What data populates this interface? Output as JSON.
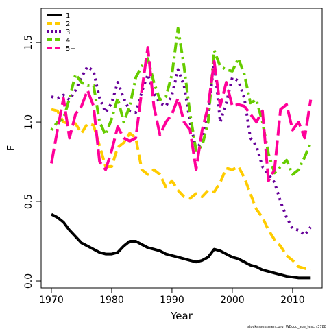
{
  "chart_data": {
    "type": "line",
    "xlabel": "Year",
    "ylabel": "F",
    "credit": "stockassessment.org, WBcod_age_test, r3788",
    "x": [
      1970,
      1971,
      1972,
      1973,
      1974,
      1975,
      1976,
      1977,
      1978,
      1979,
      1980,
      1981,
      1982,
      1983,
      1984,
      1985,
      1986,
      1987,
      1988,
      1989,
      1990,
      1991,
      1992,
      1993,
      1994,
      1995,
      1996,
      1997,
      1998,
      1999,
      2000,
      2001,
      2002,
      2003,
      2004,
      2005,
      2006,
      2007,
      2008,
      2009,
      2010,
      2011,
      2012,
      2013
    ],
    "xlim": [
      1968.3,
      2014.9
    ],
    "xticks": [
      1970,
      1980,
      1990,
      2000,
      2010
    ],
    "ylim": [
      -0.043,
      1.716
    ],
    "yticks": [
      {
        "value": 0,
        "label": "0.0"
      },
      0.5,
      {
        "value": 1,
        "label": "1.0"
      },
      1.5
    ],
    "legend": "top-left",
    "series": [
      {
        "name": "1",
        "color": "#000000",
        "dash": "solid",
        "values": [
          0.42,
          0.4,
          0.37,
          0.32,
          0.28,
          0.24,
          0.22,
          0.2,
          0.18,
          0.17,
          0.17,
          0.18,
          0.22,
          0.25,
          0.25,
          0.23,
          0.21,
          0.2,
          0.19,
          0.17,
          0.16,
          0.15,
          0.14,
          0.13,
          0.12,
          0.13,
          0.15,
          0.2,
          0.19,
          0.17,
          0.15,
          0.14,
          0.12,
          0.1,
          0.09,
          0.07,
          0.06,
          0.05,
          0.04,
          0.03,
          0.025,
          0.02,
          0.02,
          0.02
        ]
      },
      {
        "name": "2",
        "color": "#ffcc00",
        "dash": "dashed",
        "values": [
          1.08,
          1.07,
          1.0,
          0.99,
          0.99,
          0.93,
          0.99,
          0.98,
          0.85,
          0.72,
          0.72,
          0.84,
          0.87,
          0.93,
          0.9,
          0.7,
          0.67,
          0.7,
          0.67,
          0.59,
          0.63,
          0.57,
          0.53,
          0.52,
          0.55,
          0.53,
          0.57,
          0.56,
          0.62,
          0.71,
          0.7,
          0.72,
          0.65,
          0.55,
          0.45,
          0.4,
          0.32,
          0.26,
          0.22,
          0.16,
          0.13,
          0.09,
          0.08,
          0.07
        ]
      },
      {
        "name": "3",
        "color": "#660099",
        "dash": "dotted",
        "values": [
          1.16,
          1.15,
          1.17,
          1.14,
          1.2,
          1.28,
          1.35,
          1.32,
          1.15,
          1.06,
          1.12,
          1.25,
          1.15,
          1.07,
          1.06,
          1.19,
          1.3,
          1.18,
          1.12,
          1.1,
          1.17,
          1.33,
          1.23,
          1.0,
          0.83,
          0.88,
          1.05,
          1.38,
          1.0,
          1.12,
          1.28,
          1.26,
          1.15,
          0.9,
          0.85,
          0.72,
          0.67,
          0.62,
          0.5,
          0.4,
          0.33,
          0.32,
          0.29,
          0.34
        ]
      },
      {
        "name": "4",
        "color": "#66cc00",
        "dash": "dotdash",
        "values": [
          0.95,
          1.0,
          1.02,
          1.15,
          1.3,
          1.25,
          1.23,
          1.23,
          1.0,
          0.92,
          1.02,
          1.15,
          1.0,
          1.1,
          1.28,
          1.35,
          1.4,
          1.25,
          1.14,
          1.16,
          1.3,
          1.59,
          1.35,
          1.05,
          0.82,
          0.85,
          1.0,
          1.45,
          1.35,
          1.33,
          1.32,
          1.4,
          1.3,
          1.12,
          1.14,
          1.0,
          0.8,
          0.68,
          0.72,
          0.76,
          0.67,
          0.7,
          0.78,
          0.87
        ]
      },
      {
        "name": "5+",
        "color": "#ff0099",
        "dash": "longdash",
        "values": [
          0.74,
          0.95,
          1.15,
          0.9,
          1.05,
          1.1,
          1.2,
          1.1,
          0.75,
          0.7,
          0.82,
          0.97,
          0.9,
          0.88,
          0.9,
          1.2,
          1.47,
          1.1,
          0.92,
          1.0,
          1.05,
          1.15,
          1.0,
          0.95,
          0.7,
          0.95,
          1.1,
          1.38,
          1.1,
          1.25,
          1.1,
          1.11,
          1.1,
          1.05,
          1.0,
          1.07,
          0.63,
          0.7,
          1.08,
          1.11,
          0.95,
          1.0,
          0.9,
          1.14
        ]
      }
    ]
  }
}
